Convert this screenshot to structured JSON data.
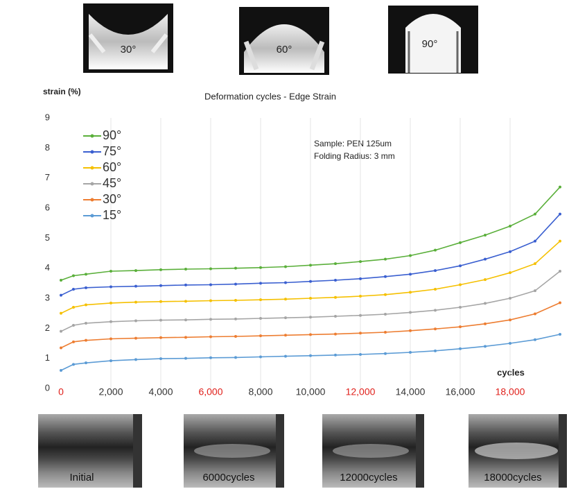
{
  "chart_data": {
    "type": "line",
    "title": "Deformation cycles - Edge Strain",
    "y_label": "strain (%)",
    "x_label": "cycles",
    "annotations": [
      "Sample: PEN 125um",
      "Folding Radius: 3 mm"
    ],
    "x": [
      0,
      500,
      1000,
      2000,
      3000,
      4000,
      5000,
      6000,
      7000,
      8000,
      9000,
      10000,
      11000,
      12000,
      13000,
      14000,
      15000,
      16000,
      17000,
      18000,
      19000,
      20000
    ],
    "series": [
      {
        "name": "90°",
        "color": "#5aaf3a",
        "values": [
          3.6,
          3.75,
          3.8,
          3.9,
          3.92,
          3.95,
          3.97,
          3.98,
          4.0,
          4.02,
          4.05,
          4.1,
          4.15,
          4.22,
          4.3,
          4.42,
          4.6,
          4.85,
          5.1,
          5.4,
          5.8,
          6.7
        ]
      },
      {
        "name": "75°",
        "color": "#3a5fd0",
        "values": [
          3.1,
          3.3,
          3.35,
          3.38,
          3.4,
          3.42,
          3.44,
          3.45,
          3.47,
          3.5,
          3.52,
          3.56,
          3.6,
          3.65,
          3.72,
          3.8,
          3.92,
          4.08,
          4.3,
          4.55,
          4.9,
          5.8
        ]
      },
      {
        "name": "60°",
        "color": "#f5c000",
        "values": [
          2.5,
          2.7,
          2.78,
          2.84,
          2.87,
          2.89,
          2.9,
          2.92,
          2.93,
          2.95,
          2.97,
          3.0,
          3.03,
          3.07,
          3.12,
          3.2,
          3.3,
          3.45,
          3.62,
          3.85,
          4.15,
          4.9
        ]
      },
      {
        "name": "45°",
        "color": "#a5a5a5",
        "values": [
          1.9,
          2.1,
          2.17,
          2.22,
          2.25,
          2.27,
          2.28,
          2.3,
          2.31,
          2.33,
          2.35,
          2.37,
          2.4,
          2.43,
          2.47,
          2.53,
          2.6,
          2.7,
          2.83,
          3.0,
          3.25,
          3.9
        ]
      },
      {
        "name": "30°",
        "color": "#ed7d31",
        "values": [
          1.35,
          1.55,
          1.6,
          1.65,
          1.67,
          1.69,
          1.7,
          1.72,
          1.73,
          1.75,
          1.77,
          1.79,
          1.81,
          1.84,
          1.87,
          1.92,
          1.98,
          2.05,
          2.15,
          2.28,
          2.48,
          2.85
        ]
      },
      {
        "name": "15°",
        "color": "#5b9bd5",
        "values": [
          0.6,
          0.8,
          0.85,
          0.92,
          0.96,
          0.99,
          1.0,
          1.02,
          1.03,
          1.05,
          1.07,
          1.09,
          1.11,
          1.13,
          1.16,
          1.2,
          1.25,
          1.32,
          1.4,
          1.5,
          1.62,
          1.8
        ]
      }
    ],
    "xlim": [
      0,
      20000
    ],
    "ylim": [
      0,
      9
    ],
    "xticks": [
      0,
      {
        "value": 2000,
        "label": "2,000"
      },
      {
        "value": 4000,
        "label": "4,000"
      },
      {
        "value": 6000,
        "label": "6,000"
      },
      {
        "value": 8000,
        "label": "8,000"
      },
      {
        "value": 10000,
        "label": "10,000"
      },
      {
        "value": 12000,
        "label": "12,000"
      },
      {
        "value": 14000,
        "label": "14,000"
      },
      {
        "value": 16000,
        "label": "16,000"
      },
      {
        "value": 18000,
        "label": "18,000"
      }
    ],
    "xtick_colors": [
      "#e0201b",
      "#333333",
      "#333333",
      "#e0201b",
      "#333333",
      "#333333",
      "#e0201b",
      "#333333",
      "#333333",
      "#e0201b"
    ],
    "yticks": [
      0,
      1,
      2,
      3,
      4,
      5,
      6,
      7,
      8,
      9
    ],
    "grid": true,
    "legend": "upper left"
  },
  "photos": {
    "bend_angles": [
      "30°",
      "60°",
      "90°"
    ],
    "cycle_states": [
      "Initial",
      "6000cycles",
      "12000cycles",
      "18000cycles"
    ]
  }
}
